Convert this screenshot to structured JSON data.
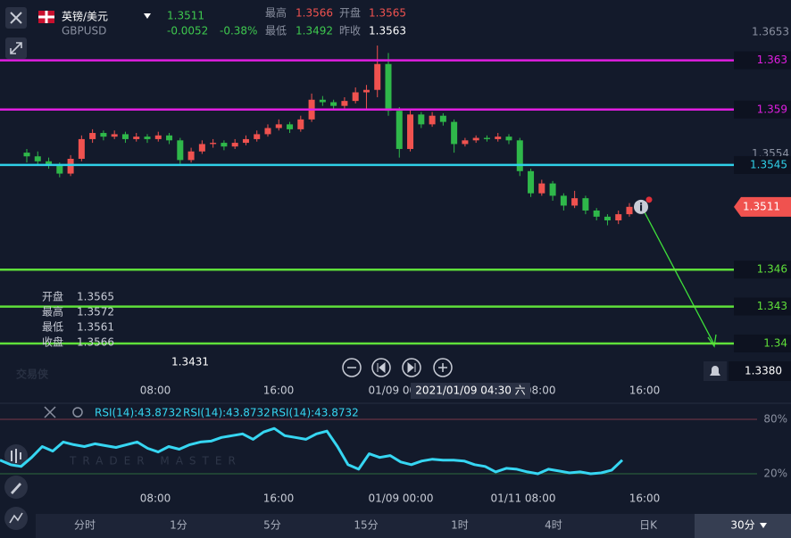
{
  "header": {
    "name": "英镑/美元",
    "code": "GBPUSD",
    "price": "1.3511",
    "change": "-0.0052",
    "percent": "-0.38%",
    "high_label": "最高",
    "high": "1.3566",
    "open_label": "开盘",
    "open": "1.3565",
    "low_label": "最低",
    "low": "1.3492",
    "prev_label": "昨收",
    "prev": "1.3563"
  },
  "chart_data": {
    "type": "candlestick",
    "up_color": "#f0524f",
    "down_color": "#2fb84a",
    "ylim": [
      1.3371,
      1.3679
    ],
    "candles": [
      [
        1.3555,
        1.3558,
        1.3547,
        1.3552
      ],
      [
        1.3552,
        1.3556,
        1.3545,
        1.3548
      ],
      [
        1.3548,
        1.3551,
        1.3542,
        1.3545
      ],
      [
        1.3545,
        1.3547,
        1.3535,
        1.3538
      ],
      [
        1.3538,
        1.3553,
        1.3536,
        1.355
      ],
      [
        1.355,
        1.3569,
        1.3548,
        1.3566
      ],
      [
        1.3566,
        1.3574,
        1.3563,
        1.3571
      ],
      [
        1.3571,
        1.3573,
        1.3565,
        1.3568
      ],
      [
        1.3568,
        1.3573,
        1.3566,
        1.357
      ],
      [
        1.357,
        1.3572,
        1.3563,
        1.3566
      ],
      [
        1.3566,
        1.3571,
        1.3564,
        1.3568
      ],
      [
        1.3568,
        1.357,
        1.3563,
        1.3566
      ],
      [
        1.3566,
        1.3572,
        1.3564,
        1.3569
      ],
      [
        1.3569,
        1.3571,
        1.3562,
        1.3565
      ],
      [
        1.3565,
        1.3567,
        1.3546,
        1.3549
      ],
      [
        1.3549,
        1.3559,
        1.3547,
        1.3556
      ],
      [
        1.3556,
        1.3565,
        1.3554,
        1.3562
      ],
      [
        1.3562,
        1.3566,
        1.3559,
        1.3563
      ],
      [
        1.3563,
        1.3565,
        1.3557,
        1.356
      ],
      [
        1.356,
        1.3566,
        1.3558,
        1.3563
      ],
      [
        1.3563,
        1.3569,
        1.3561,
        1.3566
      ],
      [
        1.3566,
        1.3573,
        1.3564,
        1.357
      ],
      [
        1.357,
        1.3578,
        1.3568,
        1.3575
      ],
      [
        1.3575,
        1.3582,
        1.3573,
        1.3578
      ],
      [
        1.3578,
        1.358,
        1.3571,
        1.3574
      ],
      [
        1.3574,
        1.3585,
        1.3572,
        1.3582
      ],
      [
        1.3582,
        1.3603,
        1.358,
        1.3598
      ],
      [
        1.3598,
        1.3601,
        1.3593,
        1.3596
      ],
      [
        1.3596,
        1.3598,
        1.359,
        1.3593
      ],
      [
        1.3593,
        1.36,
        1.3591,
        1.3597
      ],
      [
        1.3597,
        1.3608,
        1.3595,
        1.3604
      ],
      [
        1.3604,
        1.361,
        1.359,
        1.3606
      ],
      [
        1.3606,
        1.3642,
        1.36,
        1.3627
      ],
      [
        1.3627,
        1.3636,
        1.3585,
        1.3589
      ],
      [
        1.3589,
        1.3592,
        1.3551,
        1.3558
      ],
      [
        1.3558,
        1.359,
        1.3556,
        1.3586
      ],
      [
        1.3586,
        1.3588,
        1.3575,
        1.3578
      ],
      [
        1.3578,
        1.3588,
        1.3576,
        1.3585
      ],
      [
        1.3585,
        1.3587,
        1.3577,
        1.358
      ],
      [
        1.358,
        1.3582,
        1.3555,
        1.3562
      ],
      [
        1.3562,
        1.3567,
        1.356,
        1.3565
      ],
      [
        1.3565,
        1.3569,
        1.3563,
        1.3567
      ],
      [
        1.3567,
        1.3569,
        1.3564,
        1.3566
      ],
      [
        1.3566,
        1.3571,
        1.3564,
        1.3568
      ],
      [
        1.3568,
        1.357,
        1.3562,
        1.3565
      ],
      [
        1.3565,
        1.3567,
        1.3536,
        1.354
      ],
      [
        1.354,
        1.3542,
        1.3519,
        1.3522
      ],
      [
        1.3522,
        1.3533,
        1.352,
        1.353
      ],
      [
        1.353,
        1.3532,
        1.3516,
        1.352
      ],
      [
        1.352,
        1.3522,
        1.3508,
        1.3512
      ],
      [
        1.3512,
        1.3524,
        1.351,
        1.3518
      ],
      [
        1.3518,
        1.352,
        1.3505,
        1.3508
      ],
      [
        1.3508,
        1.351,
        1.35,
        1.3503
      ],
      [
        1.3503,
        1.3505,
        1.3496,
        1.35
      ],
      [
        1.35,
        1.3508,
        1.3497,
        1.3505
      ],
      [
        1.3505,
        1.3514,
        1.3503,
        1.3511
      ]
    ],
    "levels": [
      {
        "value": 1.363,
        "color": "#e01ee0"
      },
      {
        "value": 1.359,
        "color": "#e01ee0"
      },
      {
        "value": 1.3545,
        "color": "#2fd0e8"
      },
      {
        "value": 1.346,
        "color": "#5fe03a"
      },
      {
        "value": 1.343,
        "color": "#5fe03a"
      },
      {
        "value": 1.34,
        "color": "#5fe03a"
      }
    ],
    "axis_labels": [
      1.3653,
      1.3554
    ],
    "last_price": 1.3511,
    "bell_price": {
      "value": 1.338,
      "label": "1.3380"
    },
    "low_label": "1.3431",
    "crosshair_time": "2021/01/09 04:30 六",
    "info": [
      [
        "开盘",
        "1.3565"
      ],
      [
        "最高",
        "1.3572"
      ],
      [
        "最低",
        "1.3561"
      ],
      [
        "收盘",
        "1.3566"
      ]
    ]
  },
  "time_axis": [
    "08:00",
    "16:00",
    "01/09 00:00",
    "01/11 08:00",
    "16:00"
  ],
  "rsi": {
    "labels": [
      "RSI(14):43.8732",
      "RSI(14):43.8732",
      "RSI(14):43.8732"
    ],
    "color": "#36d6f2",
    "ylim": [
      6.2,
      97.7
    ],
    "yticks": [
      {
        "value": 80,
        "label": "80%",
        "color": "#7a3848"
      },
      {
        "value": 20,
        "label": "20%",
        "color": "#2e6a3c"
      }
    ],
    "values": [
      35,
      30,
      28,
      38,
      50,
      45,
      55,
      52,
      50,
      53,
      51,
      49,
      52,
      55,
      48,
      44,
      50,
      47,
      52,
      55,
      56,
      60,
      62,
      64,
      58,
      66,
      70,
      62,
      60,
      58,
      64,
      67,
      50,
      30,
      25,
      42,
      38,
      40,
      33,
      30,
      34,
      36,
      35,
      35,
      34,
      30,
      28,
      22,
      26,
      25,
      22,
      20,
      25,
      23,
      21,
      22,
      20,
      21,
      24,
      35
    ]
  },
  "tabs": [
    "分时",
    "1分",
    "5分",
    "15分",
    "1时",
    "4时",
    "日K",
    "30分"
  ],
  "watermark": {
    "logo": "交易侠",
    "text": "TRADER MASTER"
  }
}
